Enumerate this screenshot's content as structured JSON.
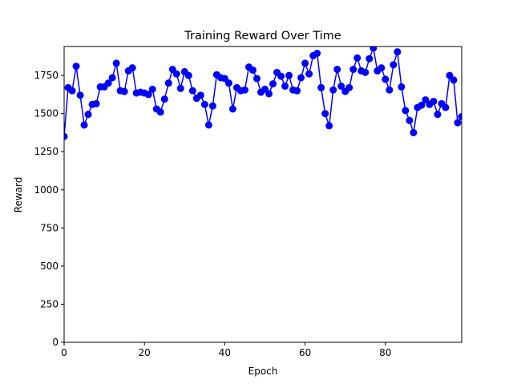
{
  "chart_data": {
    "type": "line",
    "title": "Training Reward Over Time",
    "xlabel": "Epoch",
    "ylabel": "Reward",
    "xlim": [
      0,
      99
    ],
    "ylim": [
      0,
      1940
    ],
    "x_ticks": [
      0,
      20,
      40,
      60,
      80
    ],
    "y_ticks": [
      0,
      250,
      500,
      750,
      1000,
      1250,
      1500,
      1750
    ],
    "grid": false,
    "legend": "none",
    "line_color": "#0000ff",
    "marker": "circle",
    "series": [
      {
        "x": [
          0,
          1,
          2,
          3,
          4,
          5,
          6,
          7,
          8,
          9,
          10,
          11,
          12,
          13,
          14,
          15,
          16,
          17,
          18,
          19,
          20,
          21,
          22,
          23,
          24,
          25,
          26,
          27,
          28,
          29,
          30,
          31,
          32,
          33,
          34,
          35,
          36,
          37,
          38,
          39,
          40,
          41,
          42,
          43,
          44,
          45,
          46,
          47,
          48,
          49,
          50,
          51,
          52,
          53,
          54,
          55,
          56,
          57,
          58,
          59,
          60,
          61,
          62,
          63,
          64,
          65,
          66,
          67,
          68,
          69,
          70,
          71,
          72,
          73,
          74,
          75,
          76,
          77,
          78,
          79,
          80,
          81,
          82,
          83,
          84,
          85,
          86,
          87,
          88,
          89,
          90,
          91,
          92,
          93,
          94,
          95,
          96,
          97,
          98,
          99
        ],
        "values": [
          1350,
          1670,
          1650,
          1810,
          1620,
          1425,
          1495,
          1560,
          1565,
          1675,
          1675,
          1700,
          1735,
          1830,
          1650,
          1645,
          1780,
          1800,
          1635,
          1640,
          1635,
          1625,
          1660,
          1530,
          1510,
          1595,
          1700,
          1790,
          1760,
          1665,
          1775,
          1750,
          1650,
          1600,
          1620,
          1560,
          1425,
          1550,
          1755,
          1735,
          1730,
          1700,
          1530,
          1670,
          1650,
          1655,
          1805,
          1785,
          1730,
          1640,
          1660,
          1630,
          1695,
          1770,
          1745,
          1680,
          1750,
          1655,
          1650,
          1735,
          1830,
          1760,
          1880,
          1895,
          1670,
          1500,
          1420,
          1655,
          1790,
          1680,
          1645,
          1670,
          1790,
          1865,
          1780,
          1770,
          1860,
          1930,
          1780,
          1800,
          1725,
          1655,
          1820,
          1905,
          1675,
          1520,
          1455,
          1375,
          1540,
          1555,
          1590,
          1560,
          1580,
          1495,
          1565,
          1540,
          1750,
          1720,
          1440,
          1480
        ]
      }
    ]
  }
}
